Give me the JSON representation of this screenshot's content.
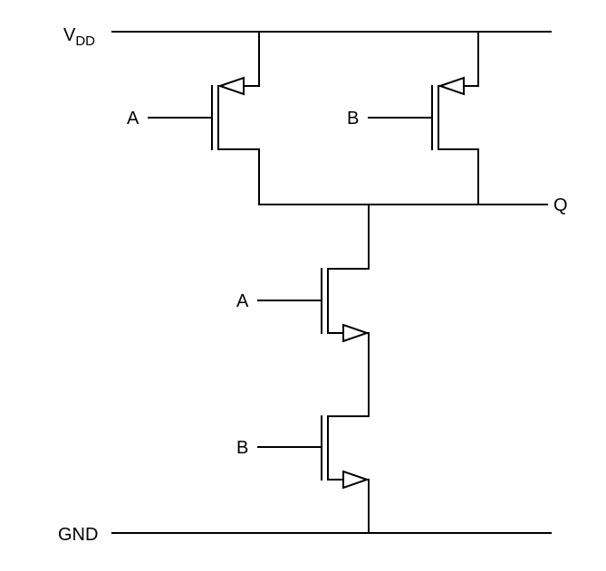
{
  "labels": {
    "vdd_main": "V",
    "vdd_sub": "DD",
    "gnd": "GND",
    "output": "Q",
    "pmos_a_gate": "A",
    "pmos_b_gate": "B",
    "nmos_a_gate": "A",
    "nmos_b_gate": "B"
  },
  "colors": {
    "stroke": "#000000",
    "background": "#ffffff"
  }
}
